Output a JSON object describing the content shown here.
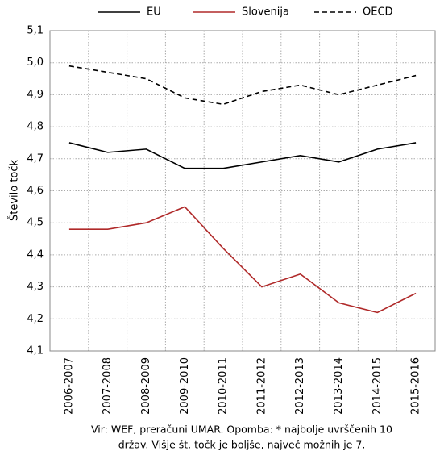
{
  "chart_data": {
    "type": "line",
    "y_label": "Število točk",
    "categories": [
      "2006-2007",
      "2007-2008",
      "2008-2009",
      "2009-2010",
      "2010-2011",
      "2011-2012",
      "2012-2013",
      "2013-2014",
      "2014-2015",
      "2015-2016"
    ],
    "series": [
      {
        "name": "EU",
        "color": "#000000",
        "style": "solid",
        "values": [
          4.75,
          4.72,
          4.73,
          4.67,
          4.67,
          4.69,
          4.71,
          4.69,
          4.73,
          4.75
        ]
      },
      {
        "name": "Slovenija",
        "color": "#b02a2a",
        "style": "solid",
        "values": [
          4.48,
          4.48,
          4.5,
          4.55,
          4.42,
          4.3,
          4.34,
          4.25,
          4.22,
          4.28
        ]
      },
      {
        "name": "OECD",
        "color": "#000000",
        "style": "dashed",
        "values": [
          4.99,
          4.97,
          4.95,
          4.89,
          4.87,
          4.91,
          4.93,
          4.9,
          4.93,
          4.96
        ]
      }
    ],
    "ylim": [
      4.1,
      5.1
    ],
    "yticks": [
      {
        "value": 4.1,
        "label": "4,1"
      },
      {
        "value": 4.2,
        "label": "4,2"
      },
      {
        "value": 4.3,
        "label": "4,3"
      },
      {
        "value": 4.4,
        "label": "4,4"
      },
      {
        "value": 4.5,
        "label": "4,5"
      },
      {
        "value": 4.6,
        "label": "4,6"
      },
      {
        "value": 4.7,
        "label": "4,7"
      },
      {
        "value": 4.8,
        "label": "4,8"
      },
      {
        "value": 4.9,
        "label": "4,9"
      },
      {
        "value": 5.0,
        "label": "5,0"
      },
      {
        "value": 5.1,
        "label": "5,1"
      }
    ],
    "grid": true,
    "legend": "top",
    "source": [
      "Vir: WEF, preračuni UMAR. Opomba: * najbolje uvrščenih 10",
      "držav. Višje št. točk je boljše, največ možnih je 7."
    ]
  }
}
